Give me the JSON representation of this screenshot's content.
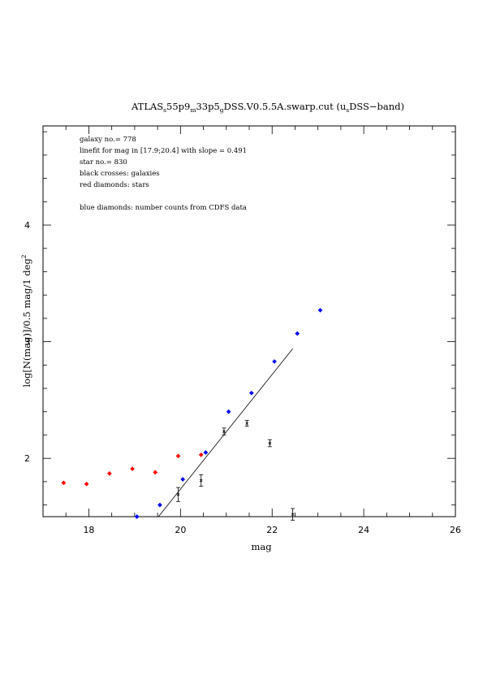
{
  "chart_data": {
    "type": "scatter",
    "title": "ATLAS",
    "title_parts": [
      "ATLAS",
      "s",
      "55p9",
      "m",
      "33p5",
      "g",
      "DSS.V0.5.5A.swarp.cut (u",
      "s",
      "DSS−band)"
    ],
    "xlabel": "mag",
    "ylabel": "log[N(mag)]/0.5 mag/1 deg",
    "ylabel_sup": "2",
    "xlim": [
      17,
      26
    ],
    "ylim": [
      1.5,
      4.85
    ],
    "x_ticks": [
      18,
      20,
      22,
      24,
      26
    ],
    "x_tick_labels": [
      "18",
      "20",
      "22",
      "24",
      "26"
    ],
    "y_ticks": [
      2,
      3,
      4
    ],
    "y_tick_labels": [
      "2",
      "3",
      "4"
    ],
    "grid": false,
    "annotations": [
      "galaxy no.= 778",
      "linefit for mag in [17.9;20.4] with slope = 0.491",
      "star no.= 830",
      "black crosses: galaxies",
      "red diamonds: stars",
      "",
      "blue diamonds: number counts from CDFS data"
    ],
    "series": [
      {
        "name": "galaxies",
        "color": "#000000",
        "marker": "cross-errorbar",
        "points": [
          {
            "x": 19.95,
            "y": 1.69,
            "err": 0.06
          },
          {
            "x": 20.45,
            "y": 1.81,
            "err": 0.05
          },
          {
            "x": 20.95,
            "y": 2.23,
            "err": 0.03
          },
          {
            "x": 21.45,
            "y": 2.3,
            "err": 0.025
          },
          {
            "x": 21.95,
            "y": 2.13,
            "err": 0.03
          },
          {
            "x": 22.45,
            "y": 1.52,
            "err": 0.05
          }
        ]
      },
      {
        "name": "stars",
        "color": "#ff0000",
        "marker": "diamond",
        "points": [
          {
            "x": 17.45,
            "y": 1.79
          },
          {
            "x": 17.95,
            "y": 1.78
          },
          {
            "x": 18.45,
            "y": 1.87
          },
          {
            "x": 18.95,
            "y": 1.91
          },
          {
            "x": 19.45,
            "y": 1.88
          },
          {
            "x": 19.95,
            "y": 2.02
          },
          {
            "x": 20.45,
            "y": 2.03
          }
        ]
      },
      {
        "name": "number counts from CDFS data",
        "color": "#0000ff",
        "marker": "diamond",
        "points": [
          {
            "x": 19.05,
            "y": 1.5
          },
          {
            "x": 19.55,
            "y": 1.6
          },
          {
            "x": 20.05,
            "y": 1.82
          },
          {
            "x": 20.55,
            "y": 2.05
          },
          {
            "x": 21.05,
            "y": 2.4
          },
          {
            "x": 21.55,
            "y": 2.56
          },
          {
            "x": 22.05,
            "y": 2.83
          },
          {
            "x": 22.55,
            "y": 3.07
          },
          {
            "x": 23.05,
            "y": 3.27
          }
        ]
      }
    ],
    "fit_line": {
      "x": [
        19.52,
        22.45
      ],
      "y": [
        1.5,
        2.94
      ],
      "color": "#000000"
    }
  }
}
